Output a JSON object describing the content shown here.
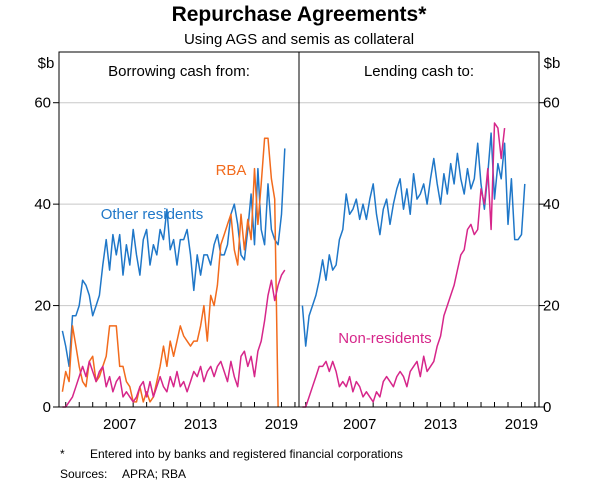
{
  "title": "Repurchase Agreements*",
  "subtitle": "Using AGS and semis as collateral",
  "footnote_marker": "*",
  "footnote": "Entered into by banks and registered financial corporations",
  "sources_label": "Sources:",
  "sources": "APRA; RBA",
  "colors": {
    "other_residents": "#1f77c8",
    "rba": "#f26b1d",
    "non_residents": "#d6268a",
    "axis": "#000000",
    "grid": "#c8c8c8"
  },
  "chart_data": [
    {
      "type": "line",
      "panel_title": "Borrowing cash from:",
      "ylabel_left": "$b",
      "ylabel_right": "",
      "ylim": [
        0,
        70
      ],
      "yticks": [
        0,
        20,
        40,
        60
      ],
      "xlim": [
        2002.5,
        2020.3
      ],
      "xticks": [
        2007,
        2013,
        2019
      ],
      "grid": true,
      "series": [
        {
          "name": "Other residents",
          "color": "#1f77c8",
          "x": [
            2002.75,
            2003.0,
            2003.25,
            2003.5,
            2003.75,
            2004.0,
            2004.25,
            2004.5,
            2004.75,
            2005.0,
            2005.25,
            2005.5,
            2005.75,
            2006.0,
            2006.25,
            2006.5,
            2006.75,
            2007.0,
            2007.25,
            2007.5,
            2007.75,
            2008.0,
            2008.25,
            2008.5,
            2008.75,
            2009.0,
            2009.25,
            2009.5,
            2009.75,
            2010.0,
            2010.25,
            2010.5,
            2010.75,
            2011.0,
            2011.25,
            2011.5,
            2011.75,
            2012.0,
            2012.25,
            2012.5,
            2012.75,
            2013.0,
            2013.25,
            2013.5,
            2013.75,
            2014.0,
            2014.25,
            2014.5,
            2014.75,
            2015.0,
            2015.25,
            2015.5,
            2015.75,
            2016.0,
            2016.25,
            2016.5,
            2016.75,
            2017.0,
            2017.25,
            2017.5,
            2017.75,
            2018.0,
            2018.25,
            2018.5,
            2018.75,
            2019.0,
            2019.25
          ],
          "values": [
            15,
            12,
            8,
            18,
            18,
            20,
            25,
            24,
            22,
            18,
            20,
            22,
            28,
            33,
            27,
            34,
            30,
            34,
            26,
            32,
            28,
            35,
            30,
            26,
            33,
            35,
            28,
            32,
            30,
            35,
            33,
            39,
            31,
            33,
            28,
            33,
            33,
            35,
            30,
            23,
            30,
            26,
            30,
            30,
            28,
            32,
            34,
            30,
            30,
            32,
            38,
            40,
            36,
            30,
            29,
            35,
            42,
            32,
            47,
            35,
            32,
            44,
            35,
            33,
            32,
            38,
            51
          ]
        },
        {
          "name": "RBA",
          "color": "#f26b1d",
          "x": [
            2002.75,
            2003.0,
            2003.25,
            2003.5,
            2003.75,
            2004.0,
            2004.25,
            2004.5,
            2004.75,
            2005.0,
            2005.25,
            2005.5,
            2005.75,
            2006.0,
            2006.25,
            2006.5,
            2006.75,
            2007.0,
            2007.25,
            2007.5,
            2007.75,
            2008.0,
            2008.25,
            2008.5,
            2008.75,
            2009.0,
            2009.25,
            2009.5,
            2009.75,
            2010.0,
            2010.25,
            2010.5,
            2010.75,
            2011.0,
            2011.25,
            2011.5,
            2011.75,
            2012.0,
            2012.25,
            2012.5,
            2012.75,
            2013.0,
            2013.25,
            2013.5,
            2013.75,
            2014.0,
            2014.25,
            2014.5,
            2014.75,
            2015.0,
            2015.25,
            2015.5,
            2015.75,
            2016.0,
            2016.25,
            2016.5,
            2016.75,
            2017.0,
            2017.25,
            2017.5,
            2017.75,
            2018.0,
            2018.25,
            2018.5,
            2018.75,
            2019.0,
            2019.25
          ],
          "values": [
            3,
            7,
            5,
            16,
            12,
            8,
            5,
            4,
            9,
            10,
            5,
            6,
            8,
            10,
            16,
            16,
            16,
            8,
            8,
            5,
            4,
            1,
            1,
            4,
            1,
            3,
            1,
            2,
            5,
            8,
            12,
            8,
            13,
            10,
            13,
            16,
            14,
            13,
            12,
            13,
            13,
            16,
            20,
            13,
            22,
            20,
            24,
            32,
            34,
            36,
            38,
            31,
            28,
            38,
            31,
            37,
            33,
            47,
            36,
            44,
            53,
            53,
            45,
            41,
            0,
            0,
            0
          ],
          "end_index": 64
        },
        {
          "name": "Non-residents (borrowing)",
          "color": "#d6268a",
          "x": [
            2002.75,
            2003.0,
            2003.25,
            2003.5,
            2003.75,
            2004.0,
            2004.25,
            2004.5,
            2004.75,
            2005.0,
            2005.25,
            2005.5,
            2005.75,
            2006.0,
            2006.25,
            2006.5,
            2006.75,
            2007.0,
            2007.25,
            2007.5,
            2007.75,
            2008.0,
            2008.25,
            2008.5,
            2008.75,
            2009.0,
            2009.25,
            2009.5,
            2009.75,
            2010.0,
            2010.25,
            2010.5,
            2010.75,
            2011.0,
            2011.25,
            2011.5,
            2011.75,
            2012.0,
            2012.25,
            2012.5,
            2012.75,
            2013.0,
            2013.25,
            2013.5,
            2013.75,
            2014.0,
            2014.25,
            2014.5,
            2014.75,
            2015.0,
            2015.25,
            2015.5,
            2015.75,
            2016.0,
            2016.25,
            2016.5,
            2016.75,
            2017.0,
            2017.25,
            2017.5,
            2017.75,
            2018.0,
            2018.25,
            2018.5,
            2018.75,
            2019.0,
            2019.25
          ],
          "values": [
            0,
            0,
            1,
            2,
            4,
            6,
            8,
            6,
            9,
            7,
            5,
            7,
            8,
            4,
            6,
            3,
            5,
            6,
            2,
            3,
            2,
            1,
            2,
            4,
            5,
            2,
            5,
            2,
            4,
            6,
            4,
            3,
            6,
            4,
            7,
            4,
            5,
            3,
            5,
            7,
            6,
            8,
            5,
            7,
            8,
            6,
            8,
            9,
            7,
            5,
            9,
            6,
            4,
            10,
            11,
            8,
            10,
            6,
            11,
            13,
            17,
            22,
            25,
            21,
            24,
            26,
            27
          ]
        }
      ]
    },
    {
      "type": "line",
      "panel_title": "Lending cash to:",
      "ylabel_left": "",
      "ylabel_right": "$b",
      "ylim": [
        0,
        70
      ],
      "yticks": [
        0,
        20,
        40,
        60
      ],
      "xlim": [
        2002.5,
        2020.3
      ],
      "xticks": [
        2007,
        2013,
        2019
      ],
      "grid": true,
      "series": [
        {
          "name": "Other residents (lending)",
          "color": "#1f77c8",
          "x": [
            2002.75,
            2003.0,
            2003.25,
            2003.5,
            2003.75,
            2004.0,
            2004.25,
            2004.5,
            2004.75,
            2005.0,
            2005.25,
            2005.5,
            2005.75,
            2006.0,
            2006.25,
            2006.5,
            2006.75,
            2007.0,
            2007.25,
            2007.5,
            2007.75,
            2008.0,
            2008.25,
            2008.5,
            2008.75,
            2009.0,
            2009.25,
            2009.5,
            2009.75,
            2010.0,
            2010.25,
            2010.5,
            2010.75,
            2011.0,
            2011.25,
            2011.5,
            2011.75,
            2012.0,
            2012.25,
            2012.5,
            2012.75,
            2013.0,
            2013.25,
            2013.5,
            2013.75,
            2014.0,
            2014.25,
            2014.5,
            2014.75,
            2015.0,
            2015.25,
            2015.5,
            2015.75,
            2016.0,
            2016.25,
            2016.5,
            2016.75,
            2017.0,
            2017.25,
            2017.5,
            2017.75,
            2018.0,
            2018.25,
            2018.5,
            2018.75,
            2019.0,
            2019.25
          ],
          "values": [
            20,
            12,
            18,
            20,
            22,
            25,
            29,
            25,
            30,
            27,
            28,
            33,
            35,
            42,
            38,
            39,
            41,
            37,
            40,
            37,
            41,
            44,
            38,
            34,
            39,
            41,
            36,
            40,
            43,
            45,
            39,
            43,
            38,
            46,
            41,
            42,
            44,
            40,
            45,
            49,
            44,
            40,
            46,
            42,
            48,
            44,
            50,
            45,
            42,
            47,
            43,
            45,
            52,
            44,
            39,
            46,
            54,
            41,
            48,
            45,
            52,
            36,
            45,
            33,
            33,
            34,
            44
          ]
        },
        {
          "name": "Non-residents",
          "color": "#d6268a",
          "x": [
            2002.75,
            2003.0,
            2003.25,
            2003.5,
            2003.75,
            2004.0,
            2004.25,
            2004.5,
            2004.75,
            2005.0,
            2005.25,
            2005.5,
            2005.75,
            2006.0,
            2006.25,
            2006.5,
            2006.75,
            2007.0,
            2007.25,
            2007.5,
            2007.75,
            2008.0,
            2008.25,
            2008.5,
            2008.75,
            2009.0,
            2009.25,
            2009.5,
            2009.75,
            2010.0,
            2010.25,
            2010.5,
            2010.75,
            2011.0,
            2011.25,
            2011.5,
            2011.75,
            2012.0,
            2012.25,
            2012.5,
            2012.75,
            2013.0,
            2013.25,
            2013.5,
            2013.75,
            2014.0,
            2014.25,
            2014.5,
            2014.75,
            2015.0,
            2015.25,
            2015.5,
            2015.75,
            2016.0,
            2016.25,
            2016.5,
            2016.75,
            2017.0,
            2017.25,
            2017.5,
            2017.75,
            2018.0,
            2018.25,
            2018.5,
            2018.75,
            2019.0,
            2019.25
          ],
          "values": [
            0,
            0,
            2,
            4,
            6,
            8,
            8,
            9,
            7,
            9,
            7,
            4,
            5,
            4,
            6,
            3,
            5,
            4,
            2,
            3,
            2,
            1,
            3,
            2,
            5,
            6,
            5,
            4,
            6,
            7,
            6,
            4,
            7,
            8,
            9,
            6,
            10,
            7,
            8,
            9,
            12,
            14,
            18,
            20,
            22,
            24,
            27,
            30,
            31,
            35,
            36,
            34,
            35,
            43,
            40,
            47,
            35,
            56,
            55,
            49,
            55,
            0,
            0,
            0,
            0,
            0,
            0
          ],
          "end_index": 60
        }
      ]
    }
  ],
  "series_labels": {
    "other_residents": "Other residents",
    "rba": "RBA",
    "non_residents": "Non-residents"
  }
}
